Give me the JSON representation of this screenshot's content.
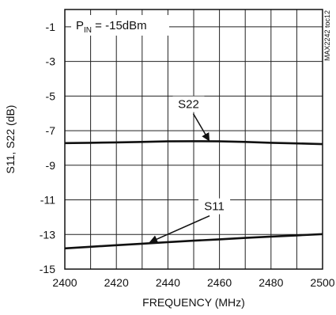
{
  "chart_data": {
    "type": "line",
    "annotation_main": "P",
    "annotation_sub": "IN",
    "annotation_rest": " = -15dBm",
    "side_code": "MAX2242 toc12",
    "xlabel": "FREQUENCY (MHz)",
    "ylabel": "S11, S22 (dB)",
    "xlim": [
      2400,
      2500
    ],
    "ylim": [
      -15,
      0
    ],
    "x_ticks": [
      2400,
      2420,
      2440,
      2460,
      2480,
      2500
    ],
    "x_tick_labels": [
      "2400",
      "2420",
      "2440",
      "2460",
      "2480",
      "2500"
    ],
    "y_ticks": [
      -1,
      -3,
      -5,
      -7,
      -9,
      -11,
      -13,
      -15
    ],
    "y_tick_labels": [
      "-1",
      "-3",
      "-5",
      "-7",
      "-9",
      "-11",
      "-13",
      "-15"
    ],
    "grid": true,
    "series": [
      {
        "name": "S22",
        "x": [
          2400,
          2410,
          2420,
          2430,
          2440,
          2450,
          2460,
          2470,
          2480,
          2490,
          2500
        ],
        "values": [
          -7.72,
          -7.7,
          -7.68,
          -7.65,
          -7.62,
          -7.61,
          -7.62,
          -7.65,
          -7.7,
          -7.74,
          -7.78
        ]
      },
      {
        "name": "S11",
        "x": [
          2400,
          2410,
          2420,
          2430,
          2440,
          2450,
          2460,
          2470,
          2480,
          2490,
          2500
        ],
        "values": [
          -13.8,
          -13.71,
          -13.62,
          -13.53,
          -13.44,
          -13.36,
          -13.28,
          -13.2,
          -13.12,
          -13.05,
          -12.98
        ]
      }
    ],
    "labels": [
      {
        "text": "S22",
        "x": 2448,
        "y": -5.7,
        "arrow_x": 2456,
        "arrow_y": -7.58
      },
      {
        "text": "S11",
        "x": 2458,
        "y": -11.6,
        "arrow_x": 2433,
        "arrow_y": -13.45
      }
    ]
  }
}
